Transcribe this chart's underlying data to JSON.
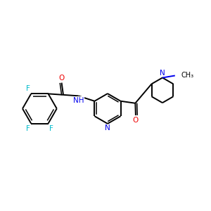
{
  "background_color": "#ffffff",
  "bond_color": "#000000",
  "N_color": "#0000ee",
  "O_color": "#ee0000",
  "F_color": "#00bbcc",
  "lw": 1.4,
  "lw2": 1.1,
  "fs": 7.5,
  "figsize": [
    3.0,
    3.0
  ],
  "dpi": 100,
  "xlim": [
    0.0,
    10.0
  ],
  "ylim": [
    2.0,
    8.0
  ]
}
